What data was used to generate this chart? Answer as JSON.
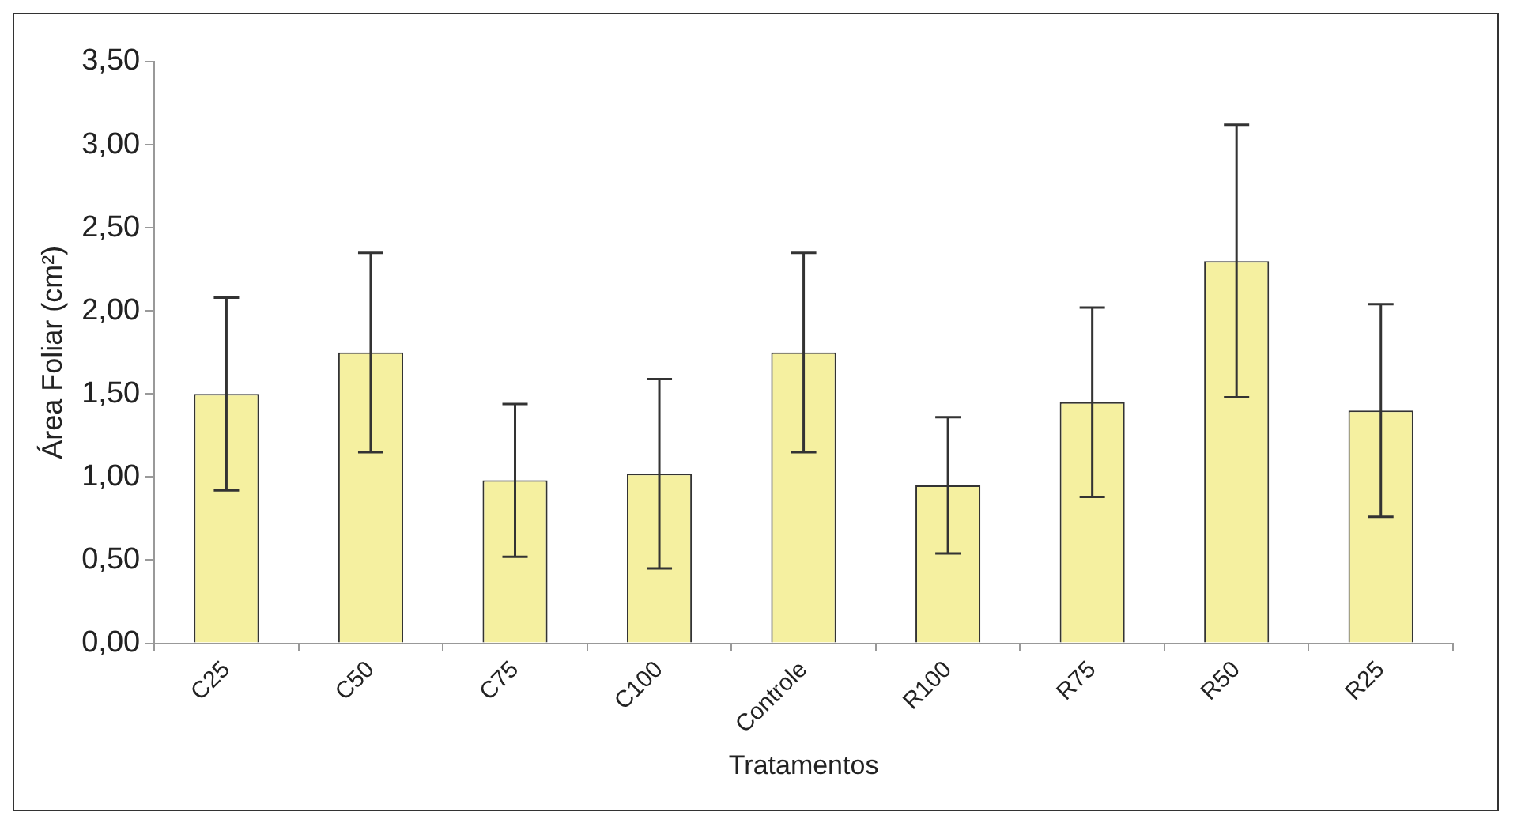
{
  "chart_data": {
    "type": "bar",
    "xlabel": "Tratamentos",
    "ylabel": "Área Foliar (cm²)",
    "categories": [
      "C25",
      "C50",
      "C75",
      "C100",
      "Controle",
      "R100",
      "R75",
      "R50",
      "R25"
    ],
    "values": [
      1.5,
      1.75,
      0.98,
      1.02,
      1.75,
      0.95,
      1.45,
      2.3,
      1.4
    ],
    "errors": [
      0.58,
      0.6,
      0.46,
      0.57,
      0.6,
      0.41,
      0.57,
      0.82,
      0.64
    ],
    "color": "#f5f0a0",
    "ylim": [
      0,
      3.5
    ],
    "yticks": [
      {
        "value": 0,
        "label": "0,00"
      },
      {
        "value": 0.5,
        "label": "0,50"
      },
      {
        "value": 1,
        "label": "1,00"
      },
      {
        "value": 1.5,
        "label": "1,50"
      },
      {
        "value": 2,
        "label": "2,00"
      },
      {
        "value": 2.5,
        "label": "2,50"
      },
      {
        "value": 3,
        "label": "3,00"
      },
      {
        "value": 3.5,
        "label": "3,50"
      }
    ],
    "grid": false,
    "legend": false
  }
}
